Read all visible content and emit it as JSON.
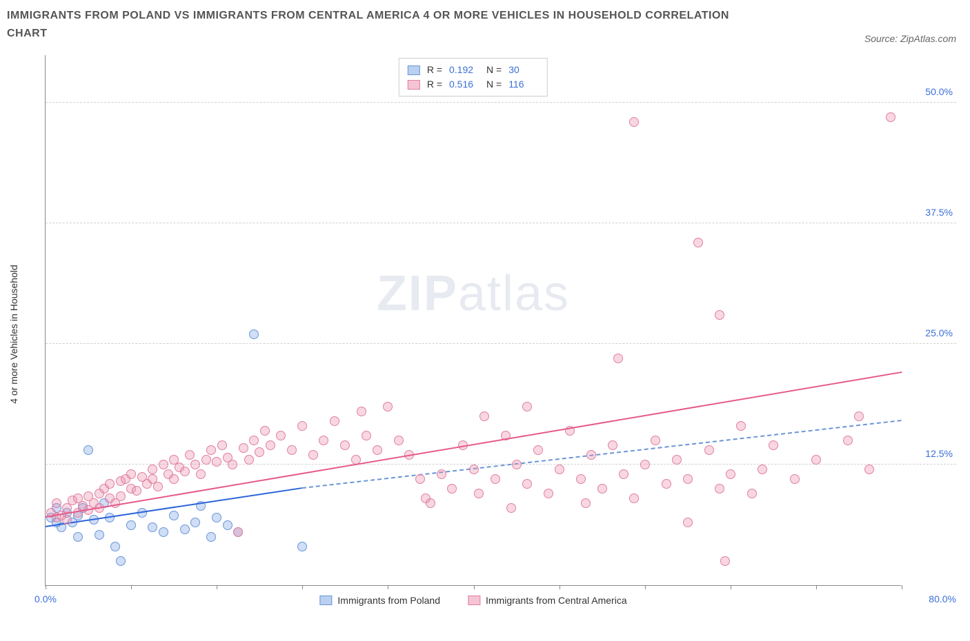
{
  "title": "IMMIGRANTS FROM POLAND VS IMMIGRANTS FROM CENTRAL AMERICA 4 OR MORE VEHICLES IN HOUSEHOLD CORRELATION CHART",
  "source": "Source: ZipAtlas.com",
  "watermark_zip": "ZIP",
  "watermark_atlas": "atlas",
  "chart": {
    "type": "scatter",
    "y_label": "4 or more Vehicles in Household",
    "xlim": [
      0,
      80
    ],
    "ylim": [
      0,
      55
    ],
    "x_min_label": "0.0%",
    "x_max_label": "80.0%",
    "y_ticks": [
      12.5,
      25.0,
      37.5,
      50.0
    ],
    "y_tick_labels": [
      "12.5%",
      "25.0%",
      "37.5%",
      "50.0%"
    ],
    "x_tick_positions": [
      0,
      8,
      16,
      24,
      32,
      40,
      48,
      56,
      64,
      72,
      80
    ],
    "background_color": "#ffffff",
    "grid_color": "#d0d0d0",
    "axis_color": "#888888",
    "marker_radius": 7,
    "marker_stroke_width": 1,
    "series": [
      {
        "name": "Immigrants from Poland",
        "fill": "rgba(120,160,230,0.35)",
        "stroke": "#6a95d8",
        "swatch_fill": "#b9d0f0",
        "swatch_border": "#6a95d8",
        "r_value": "0.192",
        "n_value": "30",
        "trend": {
          "x1": 0,
          "y1": 6.0,
          "x2": 24,
          "y2": 10.0,
          "color": "#2b63d9",
          "width": 2.5,
          "dash": false,
          "extend_to_x": 80,
          "extend_y": 17.0,
          "extend_color": "#6a95d8"
        },
        "points": [
          [
            0.5,
            7
          ],
          [
            1,
            6.5
          ],
          [
            1,
            8
          ],
          [
            1.5,
            6
          ],
          [
            2,
            7.5
          ],
          [
            2.5,
            6.5
          ],
          [
            3,
            7.2
          ],
          [
            3,
            5
          ],
          [
            3.5,
            8
          ],
          [
            4,
            14
          ],
          [
            4.5,
            6.8
          ],
          [
            5,
            5.2
          ],
          [
            5.5,
            8.5
          ],
          [
            6,
            7
          ],
          [
            6.5,
            4
          ],
          [
            7,
            2.5
          ],
          [
            8,
            6.2
          ],
          [
            9,
            7.5
          ],
          [
            10,
            6
          ],
          [
            11,
            5.5
          ],
          [
            12,
            7.2
          ],
          [
            13,
            5.8
          ],
          [
            14,
            6.5
          ],
          [
            14.5,
            8.2
          ],
          [
            15.5,
            5
          ],
          [
            16,
            7
          ],
          [
            17,
            6.2
          ],
          [
            18,
            5.5
          ],
          [
            19.5,
            26
          ],
          [
            24,
            4
          ]
        ]
      },
      {
        "name": "Immigrants from Central America",
        "fill": "rgba(235,140,170,0.35)",
        "stroke": "#e07fa0",
        "swatch_fill": "#f5c4d4",
        "swatch_border": "#e07fa0",
        "r_value": "0.516",
        "n_value": "116",
        "trend": {
          "x1": 0,
          "y1": 7.0,
          "x2": 80,
          "y2": 22.0,
          "color": "#e65a8a",
          "width": 2.5,
          "dash": false
        },
        "points": [
          [
            0.5,
            7.5
          ],
          [
            1,
            7
          ],
          [
            1,
            8.5
          ],
          [
            1.5,
            7.2
          ],
          [
            2,
            8
          ],
          [
            2,
            6.8
          ],
          [
            2.5,
            8.8
          ],
          [
            3,
            7.5
          ],
          [
            3,
            9
          ],
          [
            3.5,
            8.2
          ],
          [
            4,
            9.2
          ],
          [
            4,
            7.8
          ],
          [
            4.5,
            8.5
          ],
          [
            5,
            9.5
          ],
          [
            5,
            8
          ],
          [
            5.5,
            10
          ],
          [
            6,
            9
          ],
          [
            6,
            10.5
          ],
          [
            6.5,
            8.5
          ],
          [
            7,
            10.8
          ],
          [
            7,
            9.2
          ],
          [
            7.5,
            11
          ],
          [
            8,
            10
          ],
          [
            8,
            11.5
          ],
          [
            8.5,
            9.8
          ],
          [
            9,
            11.2
          ],
          [
            9.5,
            10.5
          ],
          [
            10,
            12
          ],
          [
            10,
            11
          ],
          [
            10.5,
            10.2
          ],
          [
            11,
            12.5
          ],
          [
            11.5,
            11.5
          ],
          [
            12,
            13
          ],
          [
            12,
            11
          ],
          [
            12.5,
            12.2
          ],
          [
            13,
            11.8
          ],
          [
            13.5,
            13.5
          ],
          [
            14,
            12.5
          ],
          [
            14.5,
            11.5
          ],
          [
            15,
            13
          ],
          [
            15.5,
            14
          ],
          [
            16,
            12.8
          ],
          [
            16.5,
            14.5
          ],
          [
            17,
            13.2
          ],
          [
            17.5,
            12.5
          ],
          [
            18,
            5.5
          ],
          [
            18.5,
            14.2
          ],
          [
            19,
            13
          ],
          [
            19.5,
            15
          ],
          [
            20,
            13.8
          ],
          [
            20.5,
            16
          ],
          [
            21,
            14.5
          ],
          [
            22,
            15.5
          ],
          [
            23,
            14
          ],
          [
            24,
            16.5
          ],
          [
            25,
            13.5
          ],
          [
            26,
            15
          ],
          [
            27,
            17
          ],
          [
            28,
            14.5
          ],
          [
            29,
            13
          ],
          [
            29.5,
            18
          ],
          [
            30,
            15.5
          ],
          [
            31,
            14
          ],
          [
            32,
            18.5
          ],
          [
            33,
            15
          ],
          [
            34,
            13.5
          ],
          [
            35,
            11
          ],
          [
            35.5,
            9
          ],
          [
            36,
            8.5
          ],
          [
            37,
            11.5
          ],
          [
            38,
            10
          ],
          [
            39,
            14.5
          ],
          [
            40,
            12
          ],
          [
            40.5,
            9.5
          ],
          [
            41,
            17.5
          ],
          [
            42,
            11
          ],
          [
            43,
            15.5
          ],
          [
            43.5,
            8
          ],
          [
            44,
            12.5
          ],
          [
            45,
            10.5
          ],
          [
            45,
            18.5
          ],
          [
            46,
            14
          ],
          [
            47,
            9.5
          ],
          [
            48,
            12
          ],
          [
            49,
            16
          ],
          [
            50,
            11
          ],
          [
            50.5,
            8.5
          ],
          [
            51,
            13.5
          ],
          [
            52,
            10
          ],
          [
            53,
            14.5
          ],
          [
            53.5,
            23.5
          ],
          [
            54,
            11.5
          ],
          [
            55,
            9
          ],
          [
            55,
            48
          ],
          [
            56,
            12.5
          ],
          [
            57,
            15
          ],
          [
            58,
            10.5
          ],
          [
            59,
            13
          ],
          [
            60,
            11
          ],
          [
            60,
            6.5
          ],
          [
            61,
            35.5
          ],
          [
            62,
            14
          ],
          [
            63,
            28
          ],
          [
            63,
            10
          ],
          [
            63.5,
            2.5
          ],
          [
            64,
            11.5
          ],
          [
            65,
            16.5
          ],
          [
            66,
            9.5
          ],
          [
            67,
            12
          ],
          [
            68,
            14.5
          ],
          [
            70,
            11
          ],
          [
            72,
            13
          ],
          [
            75,
            15
          ],
          [
            76,
            17.5
          ],
          [
            77,
            12
          ],
          [
            79,
            48.5
          ]
        ]
      }
    ]
  }
}
